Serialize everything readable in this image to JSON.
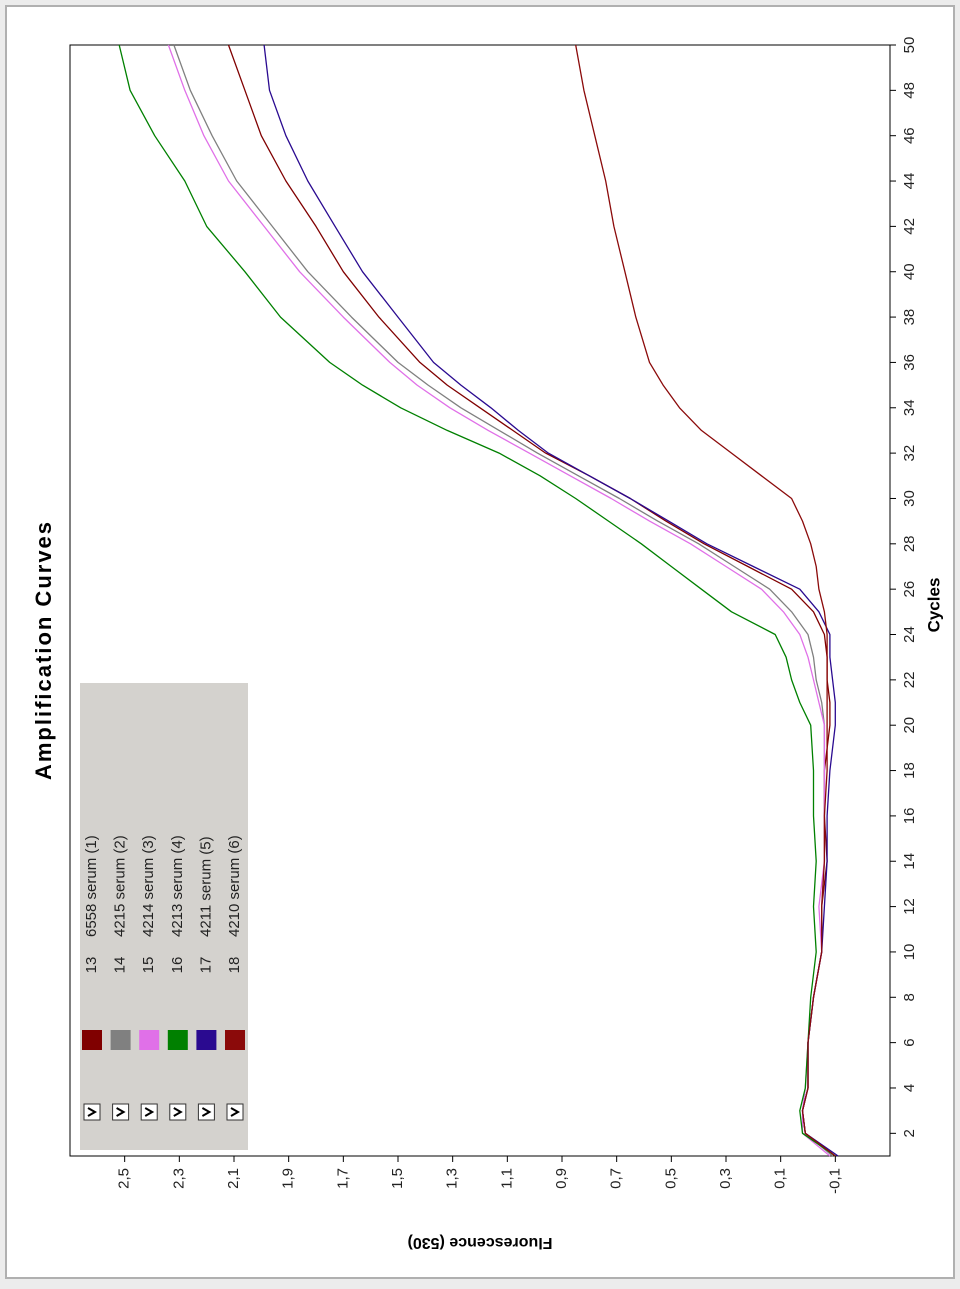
{
  "chart_data": {
    "type": "line",
    "title": "Amplification Curves",
    "xlabel": "Cycles",
    "ylabel": "Fluorescence (530)",
    "x": [
      1,
      2,
      3,
      4,
      6,
      8,
      10,
      12,
      14,
      16,
      18,
      20,
      21,
      22,
      23,
      24,
      25,
      26,
      27,
      28,
      29,
      30,
      31,
      32,
      33,
      34,
      35,
      36,
      38,
      40,
      42,
      44,
      46,
      48,
      50
    ],
    "xlim": [
      1,
      50
    ],
    "xticks": [
      2,
      4,
      6,
      8,
      10,
      12,
      14,
      16,
      18,
      20,
      22,
      24,
      26,
      28,
      30,
      32,
      34,
      36,
      38,
      40,
      42,
      44,
      46,
      48,
      50
    ],
    "ylim": [
      -0.3,
      2.7
    ],
    "yticks": [
      {
        "value": -0.1,
        "label": "-0,1"
      },
      {
        "value": 0.1,
        "label": "0,1"
      },
      {
        "value": 0.3,
        "label": "0,3"
      },
      {
        "value": 0.5,
        "label": "0,5"
      },
      {
        "value": 0.7,
        "label": "0,7"
      },
      {
        "value": 0.9,
        "label": "0,9"
      },
      {
        "value": 1.1,
        "label": "1,1"
      },
      {
        "value": 1.3,
        "label": "1,3"
      },
      {
        "value": 1.5,
        "label": "1,5"
      },
      {
        "value": 1.7,
        "label": "1,7"
      },
      {
        "value": 1.9,
        "label": "1,9"
      },
      {
        "value": 2.1,
        "label": "2,1"
      },
      {
        "value": 2.3,
        "label": "2,3"
      },
      {
        "value": 2.5,
        "label": "2,5"
      }
    ],
    "series": [
      {
        "id": "13",
        "name": "6558 serum (1)",
        "color": "#800000",
        "values": [
          -0.1,
          0.01,
          0.02,
          0.0,
          0.0,
          -0.02,
          -0.05,
          -0.05,
          -0.07,
          -0.06,
          -0.06,
          -0.08,
          -0.08,
          -0.07,
          -0.07,
          -0.06,
          -0.02,
          0.06,
          0.22,
          0.38,
          0.52,
          0.65,
          0.8,
          0.96,
          1.08,
          1.2,
          1.32,
          1.42,
          1.57,
          1.7,
          1.8,
          1.91,
          2.0,
          2.06,
          2.12
        ]
      },
      {
        "id": "14",
        "name": "4215 serum (2)",
        "color": "#808080",
        "values": [
          -0.09,
          0.01,
          0.02,
          0.0,
          0.0,
          -0.02,
          -0.05,
          -0.05,
          -0.06,
          -0.06,
          -0.06,
          -0.06,
          -0.05,
          -0.03,
          -0.02,
          0.0,
          0.06,
          0.14,
          0.27,
          0.4,
          0.55,
          0.69,
          0.84,
          0.99,
          1.13,
          1.27,
          1.39,
          1.5,
          1.67,
          1.83,
          1.96,
          2.09,
          2.18,
          2.26,
          2.32
        ]
      },
      {
        "id": "15",
        "name": "4214 serum (3)",
        "color": "#e070e8",
        "values": [
          -0.08,
          0.02,
          0.02,
          0.01,
          0.0,
          -0.02,
          -0.05,
          -0.04,
          -0.06,
          -0.06,
          -0.06,
          -0.06,
          -0.04,
          -0.02,
          0.0,
          0.03,
          0.09,
          0.17,
          0.3,
          0.43,
          0.58,
          0.72,
          0.87,
          1.02,
          1.17,
          1.31,
          1.43,
          1.53,
          1.7,
          1.86,
          1.99,
          2.12,
          2.21,
          2.28,
          2.34
        ]
      },
      {
        "id": "16",
        "name": "4213 serum (4)",
        "color": "#008000",
        "values": [
          -0.1,
          0.02,
          0.03,
          0.01,
          0.0,
          -0.01,
          -0.03,
          -0.02,
          -0.03,
          -0.02,
          -0.02,
          -0.01,
          0.03,
          0.06,
          0.08,
          0.12,
          0.28,
          0.39,
          0.5,
          0.61,
          0.73,
          0.85,
          0.98,
          1.13,
          1.32,
          1.49,
          1.63,
          1.75,
          1.93,
          2.06,
          2.2,
          2.28,
          2.39,
          2.48,
          2.52
        ]
      },
      {
        "id": "17",
        "name": "4211 serum (5)",
        "color": "#2a0a90",
        "values": [
          -0.11,
          0.01,
          0.02,
          0.0,
          0.0,
          -0.02,
          -0.05,
          -0.06,
          -0.07,
          -0.07,
          -0.08,
          -0.1,
          -0.1,
          -0.09,
          -0.08,
          -0.08,
          -0.04,
          0.03,
          0.2,
          0.37,
          0.51,
          0.65,
          0.8,
          0.95,
          1.06,
          1.16,
          1.27,
          1.37,
          1.5,
          1.63,
          1.73,
          1.83,
          1.91,
          1.97,
          1.99
        ]
      },
      {
        "id": "18",
        "name": "4210 serum (6)",
        "color": "#8b0a0a",
        "values": [
          -0.1,
          0.01,
          0.02,
          0.0,
          0.0,
          -0.02,
          -0.05,
          -0.05,
          -0.06,
          -0.06,
          -0.07,
          -0.07,
          -0.07,
          -0.07,
          -0.07,
          -0.07,
          -0.06,
          -0.04,
          -0.03,
          -0.01,
          0.02,
          0.06,
          0.17,
          0.28,
          0.39,
          0.47,
          0.53,
          0.58,
          0.63,
          0.67,
          0.71,
          0.74,
          0.78,
          0.82,
          0.85
        ]
      }
    ]
  }
}
